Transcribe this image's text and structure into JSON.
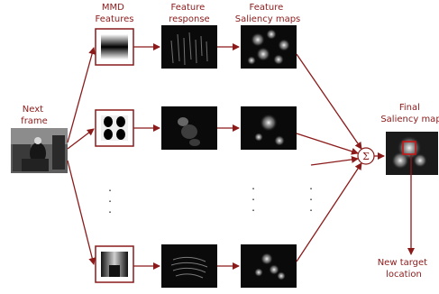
{
  "labels": {
    "mmd": [
      "MMD",
      "Features"
    ],
    "response": [
      "Feature",
      "response"
    ],
    "saliency": [
      "Feature",
      "Saliency maps"
    ],
    "next_frame": [
      "Next",
      "frame"
    ],
    "final": [
      "Final",
      "Saliency map"
    ],
    "target": [
      "New target",
      "location"
    ],
    "sum_symbol": "Σ"
  },
  "ellipsis": ".\n.\n.",
  "colors": {
    "arrow": "#8b1a1a",
    "label": "#8b1a1a",
    "image_bg": "#0a0a0a"
  }
}
